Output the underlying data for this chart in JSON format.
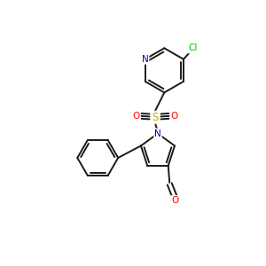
{
  "background_color": "#ffffff",
  "bond_color": "#1a1a1a",
  "atom_colors": {
    "N": "#0000cc",
    "O": "#ff0000",
    "S": "#ccaa00",
    "Cl": "#00bb00",
    "C": "#1a1a1a"
  },
  "font_size": 7.5,
  "line_width": 1.4
}
